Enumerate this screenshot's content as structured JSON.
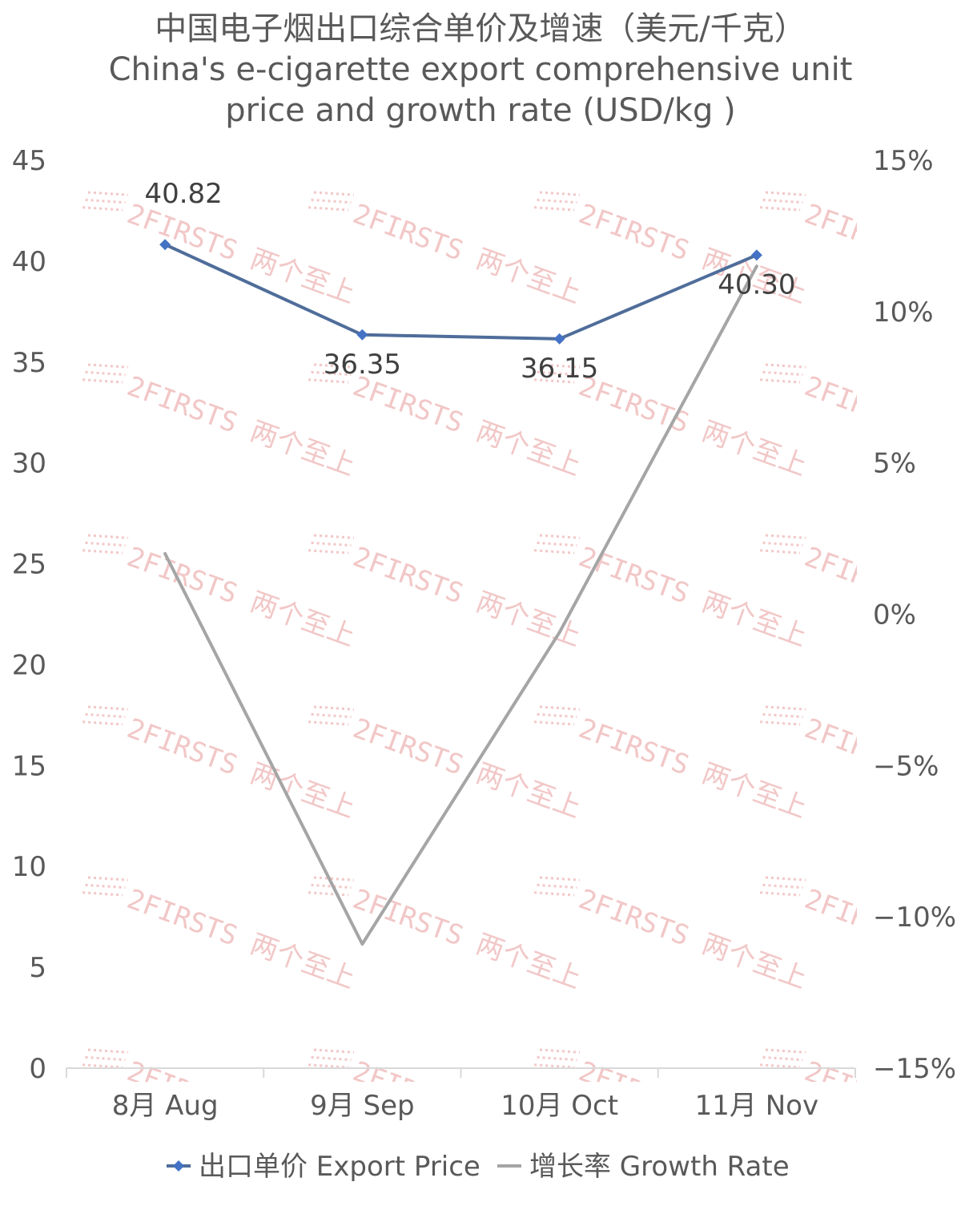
{
  "chart_data": {
    "type": "line",
    "title": "中国电子烟出口综合单价及增速（美元/千克）",
    "subtitle_lines": [
      "China's e-cigarette export comprehensive unit",
      "price and growth rate (USD/kg )"
    ],
    "categories": [
      "8月 Aug",
      "9月 Sep",
      "10月 Oct",
      "11月 Nov"
    ],
    "series": [
      {
        "name": "出口单价 Export Price",
        "axis": "left",
        "values": [
          40.82,
          36.35,
          36.15,
          40.3
        ],
        "labels": [
          "40.82",
          "36.35",
          "36.15",
          "40.30"
        ],
        "color": "#4f6d9a",
        "marker": "diamond",
        "marker_color": "#4472c4"
      },
      {
        "name": "增长率 Growth Rate",
        "axis": "right",
        "values": [
          2.0,
          -10.9,
          -0.6,
          11.5
        ],
        "color": "#a5a5a5"
      }
    ],
    "y_left": {
      "min": 0,
      "max": 45,
      "ticks": [
        0,
        5,
        10,
        15,
        20,
        25,
        30,
        35,
        40,
        45
      ],
      "tick_labels": [
        "0",
        "5",
        "10",
        "15",
        "20",
        "25",
        "30",
        "35",
        "40",
        "45"
      ]
    },
    "y_right": {
      "min": -15,
      "max": 15,
      "unit": "%",
      "ticks": [
        -15,
        -10,
        -5,
        0,
        5,
        10,
        15
      ],
      "tick_labels": [
        "−15%",
        "−10%",
        "−5%",
        "0%",
        "5%",
        "10%",
        "15%"
      ]
    },
    "grid": false,
    "legend_position": "bottom"
  },
  "watermark": {
    "text": "2FIRSTS 两个至上",
    "color": "#f2c7c7"
  }
}
